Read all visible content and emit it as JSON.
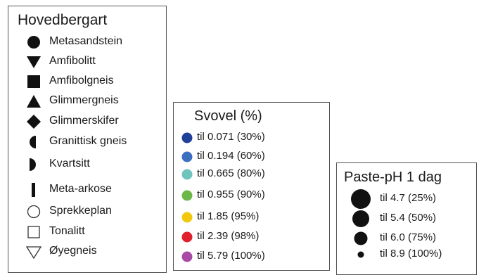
{
  "rock_legend": {
    "title": "Hovedbergart",
    "items": [
      {
        "label": "Metasandstein",
        "icon": "filled-circle-icon"
      },
      {
        "label": "Amfibolitt",
        "icon": "filled-down-triangle-icon"
      },
      {
        "label": "Amfibolgneis",
        "icon": "filled-square-icon"
      },
      {
        "label": "Glimmergneis",
        "icon": "filled-up-triangle-icon"
      },
      {
        "label": "Glimmerskifer",
        "icon": "filled-diamond-icon"
      },
      {
        "label": "Granittisk gneis",
        "icon": "left-half-circle-icon"
      },
      {
        "label": "Kvartsitt",
        "icon": "right-half-circle-icon"
      },
      {
        "label": "Meta-arkose",
        "icon": "vertical-bar-icon"
      },
      {
        "label": "Sprekkeplan",
        "icon": "hollow-circle-icon"
      },
      {
        "label": "Tonalitt",
        "icon": "hollow-square-icon"
      },
      {
        "label": "Øyegneis",
        "icon": "hollow-down-triangle-icon"
      }
    ]
  },
  "sulfur_legend": {
    "title": "Svovel (%)",
    "items": [
      {
        "label": "til 0.071 (30%)",
        "color": "#1f3f99"
      },
      {
        "label": "til 0.194 (60%)",
        "color": "#3c6fbf"
      },
      {
        "label": "til 0.665 (80%)",
        "color": "#6fc4bd"
      },
      {
        "label": "til 0.955 (90%)",
        "color": "#6bb848"
      },
      {
        "label": "til 1.85 (95%)",
        "color": "#f2c80f"
      },
      {
        "label": "til 2.39 (98%)",
        "color": "#e0202c"
      },
      {
        "label": "til 5.79 (100%)",
        "color": "#a94aa6"
      }
    ]
  },
  "ph_legend": {
    "title": "Paste-pH 1 dag",
    "items": [
      {
        "label": "til 4.7 (25%)",
        "size_rank": 1
      },
      {
        "label": "til 5.4 (50%)",
        "size_rank": 2
      },
      {
        "label": "til 6.0 (75%)",
        "size_rank": 3
      },
      {
        "label": "til 8.9 (100%)",
        "size_rank": 4
      }
    ]
  }
}
